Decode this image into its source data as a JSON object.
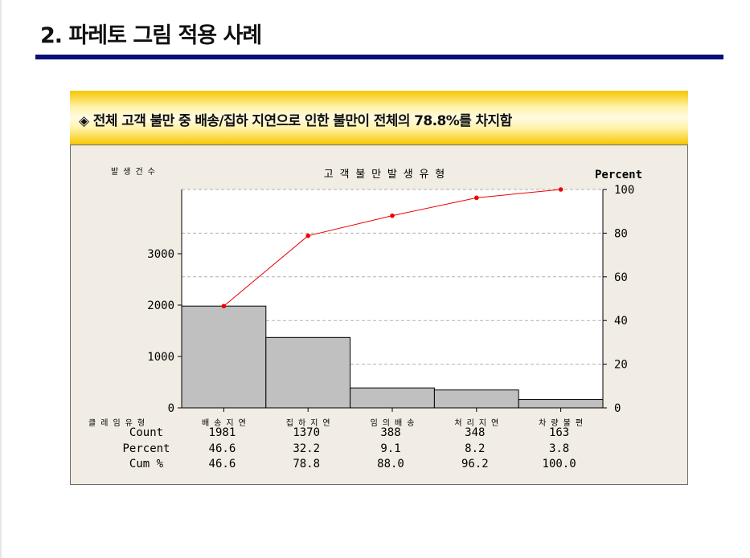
{
  "slide": {
    "title": "2. 파레토 그림 적용 사례",
    "callout_text": "◈ 전체 고객 불만 중 배송/집하 지연으로 인한 불만이 전체의 78.8%를 차지함"
  },
  "colors": {
    "title_bar": "#0a0f7a",
    "callout_gold": "#f7c600",
    "panel_bg": "#f1ede4",
    "bar_fill": "#c0c0c0",
    "cum_line": "#ee0000"
  },
  "chart_data": {
    "type": "bar",
    "title": "고 객 불 만 발 생 유 형",
    "ylabel": "발 생 건 수",
    "y2label": "Percent",
    "xlabel": "클 레 임 유 형",
    "categories": [
      "배 송 지 연",
      "집 하 지 연",
      "임 의 배 송",
      "처 리 지 연",
      "차 량 불 편"
    ],
    "values": [
      1981,
      1370,
      388,
      348,
      163
    ],
    "ylim": [
      0,
      4250
    ],
    "y2lim": [
      0,
      100
    ],
    "yticks": [
      "0",
      "1000",
      "2000",
      "3000"
    ],
    "y2ticks": [
      "0",
      "20",
      "40",
      "60",
      "80",
      "100"
    ],
    "cumulative_percent": [
      46.6,
      78.8,
      88.0,
      96.2,
      100.0
    ],
    "grid": "horizontal dashed at right-axis ticks",
    "table": {
      "row_labels": [
        "Count",
        "Percent",
        "Cum %"
      ],
      "count": [
        "1981",
        "1370",
        "388",
        "348",
        "163"
      ],
      "percent": [
        "46.6",
        "32.2",
        "9.1",
        "8.2",
        "3.8"
      ],
      "cum": [
        "46.6",
        "78.8",
        "88.0",
        "96.2",
        "100.0"
      ]
    }
  }
}
